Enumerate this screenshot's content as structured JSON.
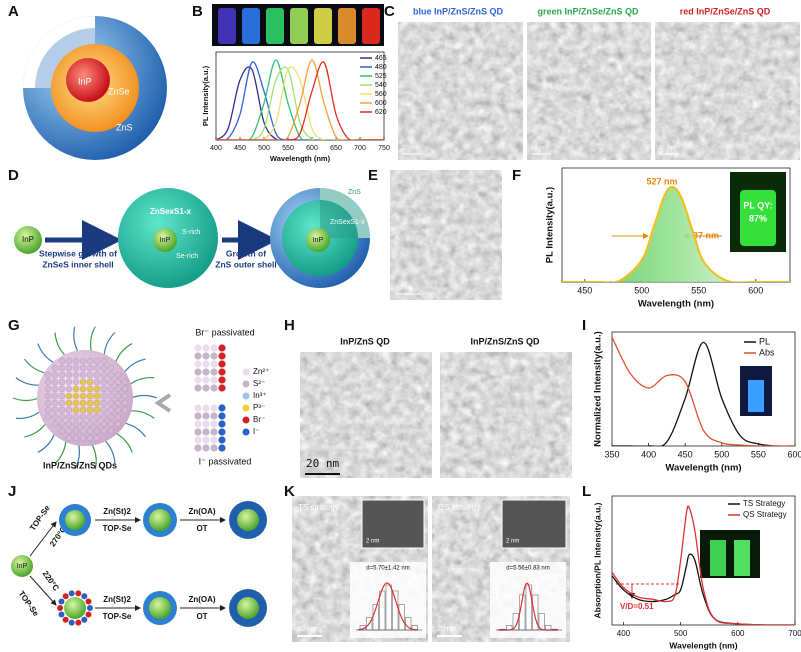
{
  "panel_letters": [
    "A",
    "B",
    "C",
    "D",
    "E",
    "F",
    "G",
    "H",
    "I",
    "J",
    "K",
    "L"
  ],
  "a": {
    "core": "InP",
    "mid": "ZnSe",
    "shell": "ZnS"
  },
  "c": {
    "titles": [
      "blue InP/ZnS/ZnS QD",
      "green InP/ZnSe/ZnS QD",
      "red InP/ZnSe/ZnS QD"
    ],
    "scale_bars": [
      "10 nm",
      "10 nm",
      "10 nm"
    ]
  },
  "d": {
    "core": "InP",
    "step1": [
      "Stepwise growth of",
      "ZnSeS inner shell"
    ],
    "shell_label": "ZnSexS1-x",
    "s_rich": "S-rich",
    "se_rich": "Se-rich",
    "core_mid": "InP",
    "step2": [
      "Growth of",
      "ZnS outer shell"
    ],
    "outer_label": "ZnS",
    "inner_label": "ZnSexS1-x",
    "core_right": "InP"
  },
  "e": {
    "scale_bar": "10 nm"
  },
  "g": {
    "br": "Br⁻ passivated",
    "i": "I⁻ passivated",
    "caption": "InP/ZnS/ZnS QDs",
    "legend": [
      "Zn²⁺",
      "S²⁻",
      "In³⁺",
      "P³⁻",
      "Br⁻",
      "I⁻"
    ],
    "legend_colors": [
      "#eadcec",
      "#c7b3cc",
      "#9fc3e6",
      "#f0cf3a",
      "#d42222",
      "#2a62c2"
    ]
  },
  "h": {
    "titles": [
      "InP/ZnS QD",
      "InP/ZnS/ZnS QD"
    ],
    "scale_bar": "20 nm"
  },
  "j": {
    "core": "InP",
    "top": {
      "reagent": "TOP-Se",
      "temp": "270°C",
      "step1": [
        "Zn(St)2",
        "TOP-Se"
      ],
      "step2": [
        "Zn(OA)",
        "OT"
      ]
    },
    "bottom": {
      "reagent": "TOP-Se",
      "temp": "220°C",
      "step1": [
        "Zn(St)2",
        "TOP-Se"
      ],
      "step2": [
        "Zn(OA)",
        "OT"
      ]
    }
  },
  "k": {
    "titles": [
      "TS strategy",
      "QS strategy"
    ],
    "inset_scale": [
      "2 nm",
      "2 nm"
    ],
    "sizes": [
      "d=5.70±1.42 nm",
      "d=5.56±0.83 nm"
    ],
    "scale_bars": [
      "20 nm",
      "20 nm"
    ]
  },
  "chart_data": [
    {
      "type": "line",
      "xlabel": "Wavelength (nm)",
      "ylabel": "PL Intensity(a.u.)",
      "x": [
        400,
        425,
        450,
        475,
        500,
        525,
        550,
        575,
        600,
        625,
        650,
        675,
        700,
        725,
        750
      ],
      "xlim": [
        400,
        750
      ],
      "xticks": [
        400,
        450,
        500,
        550,
        600,
        650,
        700,
        750
      ],
      "ylim": [
        0,
        1.1
      ],
      "legend": "upper right",
      "series": [
        {
          "name": "465",
          "color": "#3a2a8c",
          "values": [
            0,
            0.14,
            0.75,
            0.88,
            0.22,
            0.01,
            0,
            0,
            0,
            0,
            0,
            0,
            0,
            0,
            0
          ]
        },
        {
          "name": "480",
          "color": "#2f62dc",
          "values": [
            0,
            0.02,
            0.32,
            0.97,
            0.61,
            0.08,
            0,
            0,
            0,
            0,
            0,
            0,
            0,
            0,
            0
          ]
        },
        {
          "name": "525",
          "color": "#30c070",
          "values": [
            0,
            0,
            0,
            0.04,
            0.46,
            1,
            0.46,
            0.04,
            0,
            0,
            0,
            0,
            0,
            0,
            0
          ]
        },
        {
          "name": "540",
          "color": "#a6e070",
          "values": [
            0,
            0,
            0,
            0,
            0.14,
            0.75,
            0.88,
            0.22,
            0.01,
            0,
            0,
            0,
            0,
            0,
            0
          ]
        },
        {
          "name": "560",
          "color": "#ece36a",
          "values": [
            0,
            0,
            0,
            0,
            0.01,
            0.22,
            0.88,
            0.75,
            0.14,
            0,
            0,
            0,
            0,
            0,
            0
          ]
        },
        {
          "name": "600",
          "color": "#f2a040",
          "values": [
            0,
            0,
            0,
            0,
            0,
            0,
            0.04,
            0.46,
            1,
            0.46,
            0.04,
            0,
            0,
            0,
            0
          ]
        },
        {
          "name": "620",
          "color": "#e0301e",
          "values": [
            0,
            0,
            0,
            0,
            0,
            0,
            0,
            0.08,
            0.61,
            0.97,
            0.32,
            0.02,
            0,
            0,
            0
          ]
        }
      ]
    },
    {
      "type": "line",
      "xlabel": "Wavelength (nm)",
      "ylabel": "PL Intensity(a.u.)",
      "x": [
        430,
        460,
        480,
        500,
        510,
        520,
        527,
        535,
        545,
        555,
        575,
        600,
        630
      ],
      "xlim": [
        430,
        630
      ],
      "xticks": [
        450,
        500,
        550,
        600
      ],
      "ylim": [
        0,
        1.2
      ],
      "annotations": [
        "527 nm",
        "37 nm"
      ],
      "inset": [
        "PL QY:",
        "87%"
      ],
      "series": [
        {
          "color": "#f0c020",
          "values": [
            0,
            0,
            0.01,
            0.23,
            0.56,
            0.91,
            1,
            0.88,
            0.52,
            0.2,
            0.01,
            0,
            0
          ]
        }
      ]
    },
    {
      "type": "line",
      "xlabel": "Wavelength (nm)",
      "ylabel": "Normalized Intensity(a.u.)",
      "x": [
        350,
        375,
        400,
        425,
        450,
        475,
        500,
        525,
        550,
        575,
        600
      ],
      "xlim": [
        350,
        600
      ],
      "xticks": [
        350,
        400,
        450,
        500,
        550,
        600
      ],
      "ylim": [
        0,
        1.1
      ],
      "legend": "upper right",
      "series": [
        {
          "name": "PL",
          "color": "#111111",
          "values": [
            0,
            0,
            0,
            0.04,
            0.46,
            1,
            0.46,
            0.1,
            0.02,
            0,
            0
          ]
        },
        {
          "name": "Abs",
          "color": "#e05030",
          "values": [
            1.05,
            0.7,
            0.56,
            0.68,
            0.62,
            0.15,
            0.03,
            0.01,
            0,
            0,
            0
          ]
        }
      ]
    },
    {
      "type": "line",
      "xlabel": "Wavelength (nm)",
      "ylabel": "Absorption/PL Intensity(a.u.)",
      "x": [
        380,
        400,
        425,
        450,
        475,
        490,
        500,
        510,
        515,
        525,
        540,
        560,
        600,
        650,
        700
      ],
      "xlim": [
        380,
        700
      ],
      "xticks": [
        400,
        500,
        600,
        700
      ],
      "ylim": [
        0,
        1.1
      ],
      "legend": "upper right",
      "annotations": [
        "V/D=0.51"
      ],
      "series": [
        {
          "name": "TS Strategy",
          "color": "#111111",
          "values": [
            0.42,
            0.3,
            0.22,
            0.2,
            0.22,
            0.26,
            0.3,
            0.5,
            0.6,
            0.55,
            0.25,
            0.05,
            0.01,
            0,
            0
          ]
        },
        {
          "name": "QS Strategy",
          "color": "#e03030",
          "values": [
            0.45,
            0.32,
            0.24,
            0.22,
            0.2,
            0.25,
            0.55,
            0.95,
            1,
            0.8,
            0.3,
            0.05,
            0.01,
            0,
            0
          ]
        }
      ]
    }
  ]
}
